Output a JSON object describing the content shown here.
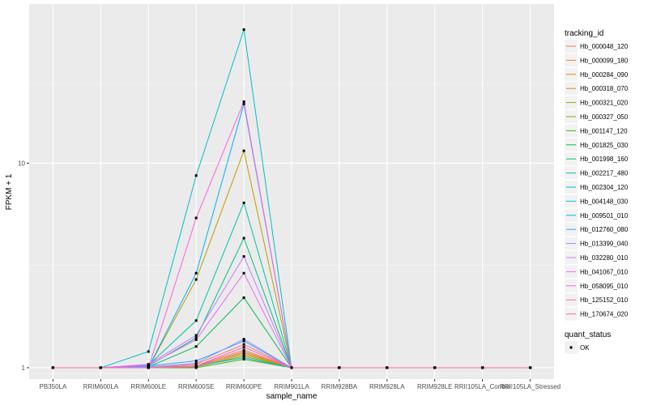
{
  "chart_data": {
    "type": "line",
    "xlabel": "sample_name",
    "ylabel": "FPKM + 1",
    "y_scale": "log10",
    "ylim": [
      0.88,
      60
    ],
    "y_ticks": [
      {
        "value": 1,
        "label": "1"
      },
      {
        "value": 10,
        "label": "10"
      }
    ],
    "grid": true,
    "legend_position": "right",
    "categories": [
      "PB350LA",
      "RRIM600LA",
      "RRIM600LE",
      "RRIM600SE",
      "RRIM600PE",
      "RRIM901LA",
      "RRIM928BA",
      "RRIM928LA",
      "RRIM928LE",
      "RRII105LA_Control",
      "RRII105LA_Stressed"
    ],
    "color_legend": {
      "title": "tracking_id",
      "entries": [
        {
          "label": "Hb_000048_120",
          "color": "#F8766D"
        },
        {
          "label": "Hb_000099_180",
          "color": "#EA8331"
        },
        {
          "label": "Hb_000284_090",
          "color": "#D89000"
        },
        {
          "label": "Hb_000318_070",
          "color": "#C09B00"
        },
        {
          "label": "Hb_000321_020",
          "color": "#A3A500"
        },
        {
          "label": "Hb_000327_050",
          "color": "#7CAE00"
        },
        {
          "label": "Hb_001147_120",
          "color": "#39B600"
        },
        {
          "label": "Hb_001825_030",
          "color": "#00BB4E"
        },
        {
          "label": "Hb_001998_160",
          "color": "#00BF7D"
        },
        {
          "label": "Hb_002217_480",
          "color": "#00C1A3"
        },
        {
          "label": "Hb_002304_120",
          "color": "#00BFC4"
        },
        {
          "label": "Hb_004148_030",
          "color": "#00BAE0"
        },
        {
          "label": "Hb_009501_010",
          "color": "#00B0F6"
        },
        {
          "label": "Hb_012760_080",
          "color": "#35A2FF"
        },
        {
          "label": "Hb_013399_040",
          "color": "#9590FF"
        },
        {
          "label": "Hb_032280_010",
          "color": "#C77CFF"
        },
        {
          "label": "Hb_041067_010",
          "color": "#E76BF3"
        },
        {
          "label": "Hb_058095_010",
          "color": "#FA62DB"
        },
        {
          "label": "Hb_125152_010",
          "color": "#FF62BC"
        },
        {
          "label": "Hb_170674_020",
          "color": "#FF6A98"
        }
      ]
    },
    "shape_legend": {
      "title": "quant_status",
      "entries": [
        {
          "label": "OK",
          "shape": "square"
        }
      ]
    },
    "series": [
      {
        "name": "Hb_000048_120",
        "color": "#F8766D",
        "values": [
          1,
          1,
          1.0,
          1.04,
          1.3,
          1,
          1,
          1,
          1,
          1,
          1
        ]
      },
      {
        "name": "Hb_000099_180",
        "color": "#EA8331",
        "values": [
          1,
          1,
          1.0,
          1.02,
          1.22,
          1,
          1,
          1,
          1,
          1,
          1
        ]
      },
      {
        "name": "Hb_000284_090",
        "color": "#D89000",
        "values": [
          1,
          1,
          1.0,
          1.01,
          1.16,
          1,
          1,
          1,
          1,
          1,
          1
        ]
      },
      {
        "name": "Hb_000318_070",
        "color": "#C09B00",
        "values": [
          1,
          1,
          1.0,
          2.7,
          11.5,
          1,
          1,
          1,
          1,
          1,
          1
        ]
      },
      {
        "name": "Hb_000321_020",
        "color": "#A3A500",
        "values": [
          1,
          1,
          1.0,
          1.02,
          1.18,
          1,
          1,
          1,
          1,
          1,
          1
        ]
      },
      {
        "name": "Hb_000327_050",
        "color": "#7CAE00",
        "values": [
          1,
          1,
          1.0,
          1.01,
          1.14,
          1,
          1,
          1,
          1,
          1,
          1
        ]
      },
      {
        "name": "Hb_001147_120",
        "color": "#39B600",
        "values": [
          1,
          1,
          1.0,
          1.0,
          1.1,
          1,
          1,
          1,
          1,
          1,
          1
        ]
      },
      {
        "name": "Hb_001825_030",
        "color": "#00BB4E",
        "values": [
          1,
          1,
          1.01,
          1.27,
          2.2,
          1,
          1,
          1,
          1,
          1,
          1
        ]
      },
      {
        "name": "Hb_001998_160",
        "color": "#00BF7D",
        "values": [
          1,
          1,
          1.02,
          1.4,
          4.3,
          1,
          1,
          1,
          1,
          1,
          1
        ]
      },
      {
        "name": "Hb_002217_480",
        "color": "#00C1A3",
        "values": [
          1,
          1,
          1.03,
          1.7,
          6.4,
          1,
          1,
          1,
          1,
          1,
          1
        ]
      },
      {
        "name": "Hb_002304_120",
        "color": "#00BFC4",
        "values": [
          1,
          1,
          1.2,
          8.7,
          45.0,
          1,
          1,
          1,
          1,
          1,
          1
        ]
      },
      {
        "name": "Hb_004148_030",
        "color": "#00BAE0",
        "values": [
          1,
          1,
          1.0,
          1.02,
          1.12,
          1,
          1,
          1,
          1,
          1,
          1
        ]
      },
      {
        "name": "Hb_009501_010",
        "color": "#00B0F6",
        "values": [
          1,
          1,
          1.0,
          2.9,
          19.5,
          1,
          1,
          1,
          1,
          1,
          1
        ]
      },
      {
        "name": "Hb_012760_080",
        "color": "#35A2FF",
        "values": [
          1,
          1,
          1.02,
          1.08,
          1.35,
          1,
          1,
          1,
          1,
          1,
          1
        ]
      },
      {
        "name": "Hb_013399_040",
        "color": "#9590FF",
        "values": [
          1,
          1,
          1.01,
          1.05,
          1.38,
          1,
          1,
          1,
          1,
          1,
          1
        ]
      },
      {
        "name": "Hb_032280_010",
        "color": "#C77CFF",
        "values": [
          1,
          1,
          1.04,
          1.44,
          3.5,
          1,
          1,
          1,
          1,
          1,
          1
        ]
      },
      {
        "name": "Hb_041067_010",
        "color": "#E76BF3",
        "values": [
          1,
          1,
          1.03,
          1.37,
          2.9,
          1,
          1,
          1,
          1,
          1,
          1
        ]
      },
      {
        "name": "Hb_058095_010",
        "color": "#FA62DB",
        "values": [
          1,
          1,
          1.0,
          5.4,
          20.0,
          1,
          1,
          1,
          1,
          1,
          1
        ]
      },
      {
        "name": "Hb_125152_010",
        "color": "#FF62BC",
        "values": [
          1,
          1,
          1.0,
          1.02,
          1.26,
          1,
          1,
          1,
          1,
          1,
          1
        ]
      },
      {
        "name": "Hb_170674_020",
        "color": "#FF6A98",
        "values": [
          1,
          1,
          1.0,
          1.01,
          1.2,
          1,
          1,
          1,
          1,
          1,
          1
        ]
      }
    ]
  }
}
